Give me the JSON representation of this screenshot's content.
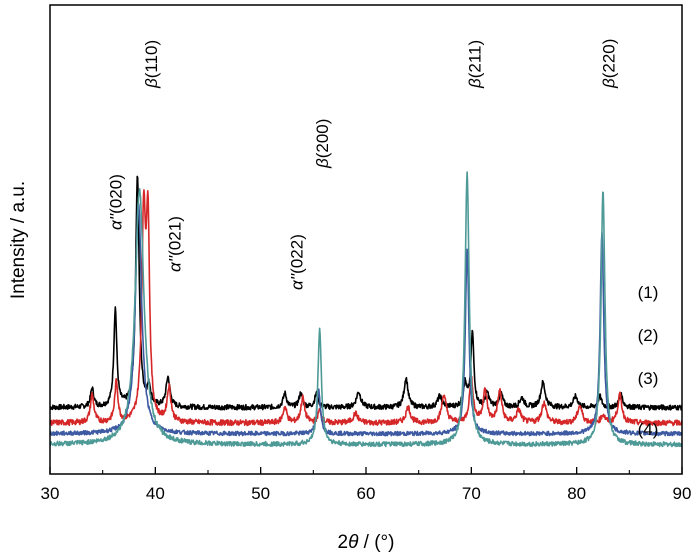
{
  "chart_data": {
    "type": "line",
    "xlabel_prefix": "2",
    "xlabel_symbol": "θ",
    "xlabel_suffix": " / (°)",
    "ylabel": "Intensity / a.u.",
    "xlim": [
      30,
      90
    ],
    "x_ticks": [
      "30",
      "40",
      "50",
      "60",
      "70",
      "80",
      "90"
    ],
    "y_ticks": [],
    "grid": false,
    "series": [
      {
        "name": "(1)",
        "color": "#000000",
        "baseline": 30,
        "noise": 0.55,
        "slope": 0,
        "peaks": [
          {
            "x": 34.0,
            "h": 12,
            "w": 0.18
          },
          {
            "x": 36.2,
            "h": 63,
            "w": 0.17
          },
          {
            "x": 38.3,
            "h": 150,
            "w": 0.2
          },
          {
            "x": 39.4,
            "h": 12,
            "w": 0.2
          },
          {
            "x": 41.2,
            "h": 19,
            "w": 0.22
          },
          {
            "x": 52.3,
            "h": 9,
            "w": 0.2
          },
          {
            "x": 53.8,
            "h": 9,
            "w": 0.2
          },
          {
            "x": 55.3,
            "h": 9,
            "w": 0.2
          },
          {
            "x": 59.3,
            "h": 10,
            "w": 0.25
          },
          {
            "x": 63.8,
            "h": 19,
            "w": 0.22
          },
          {
            "x": 67.0,
            "h": 7,
            "w": 0.25
          },
          {
            "x": 69.4,
            "h": 15,
            "w": 0.2
          },
          {
            "x": 70.1,
            "h": 48,
            "w": 0.17
          },
          {
            "x": 71.5,
            "h": 9,
            "w": 0.22
          },
          {
            "x": 72.8,
            "h": 9,
            "w": 0.22
          },
          {
            "x": 74.8,
            "h": 6,
            "w": 0.25
          },
          {
            "x": 76.8,
            "h": 16,
            "w": 0.25
          },
          {
            "x": 79.9,
            "h": 7,
            "w": 0.25
          },
          {
            "x": 82.2,
            "h": 7,
            "w": 0.2
          },
          {
            "x": 84.2,
            "h": 8,
            "w": 0.22
          }
        ]
      },
      {
        "name": "(2)",
        "color": "#d62728",
        "baseline": 20,
        "noise": 0.6,
        "slope": 0,
        "peaks": [
          {
            "x": 34.0,
            "h": 18,
            "w": 0.2
          },
          {
            "x": 36.3,
            "h": 26,
            "w": 0.18
          },
          {
            "x": 38.9,
            "h": 130,
            "w": 0.22
          },
          {
            "x": 39.3,
            "h": 120,
            "w": 0.18
          },
          {
            "x": 41.3,
            "h": 22,
            "w": 0.22
          },
          {
            "x": 52.3,
            "h": 10,
            "w": 0.22
          },
          {
            "x": 54.0,
            "h": 16,
            "w": 0.22
          },
          {
            "x": 55.6,
            "h": 8,
            "w": 0.2
          },
          {
            "x": 59.0,
            "h": 6,
            "w": 0.28
          },
          {
            "x": 64.0,
            "h": 10,
            "w": 0.26
          },
          {
            "x": 67.4,
            "h": 18,
            "w": 0.26
          },
          {
            "x": 70.0,
            "h": 28,
            "w": 0.22
          },
          {
            "x": 71.3,
            "h": 20,
            "w": 0.24
          },
          {
            "x": 72.7,
            "h": 20,
            "w": 0.24
          },
          {
            "x": 74.5,
            "h": 8,
            "w": 0.26
          },
          {
            "x": 76.9,
            "h": 13,
            "w": 0.26
          },
          {
            "x": 80.3,
            "h": 11,
            "w": 0.26
          },
          {
            "x": 82.5,
            "h": 5,
            "w": 0.22
          },
          {
            "x": 84.1,
            "h": 18,
            "w": 0.24
          }
        ]
      },
      {
        "name": "(3)",
        "color": "#3d5aa3",
        "baseline": 13,
        "noise": 0.45,
        "slope": 0,
        "peaks": [
          {
            "x": 38.4,
            "h": 150,
            "w": 0.35
          },
          {
            "x": 55.5,
            "h": 28,
            "w": 0.2
          },
          {
            "x": 69.6,
            "h": 120,
            "w": 0.2
          },
          {
            "x": 82.4,
            "h": 130,
            "w": 0.2
          }
        ]
      },
      {
        "name": "(4)",
        "color": "#4e9a97",
        "baseline": 6,
        "noise": 0.5,
        "slope": 0,
        "peaks": [
          {
            "x": 38.5,
            "h": 165,
            "w": 0.5
          },
          {
            "x": 55.6,
            "h": 74,
            "w": 0.2
          },
          {
            "x": 69.6,
            "h": 175,
            "w": 0.23
          },
          {
            "x": 82.5,
            "h": 165,
            "w": 0.22
          }
        ]
      }
    ],
    "annotations": [
      {
        "symbol": "α''",
        "text": "(020)",
        "x": 36.2
      },
      {
        "symbol": "β",
        "text": "(110)",
        "x": 39.6
      },
      {
        "symbol": "α''",
        "text": "(021)",
        "x": 41.8
      },
      {
        "symbol": "α''",
        "text": "(022)",
        "x": 53.4
      },
      {
        "symbol": "β",
        "text": "(200)",
        "x": 55.8
      },
      {
        "symbol": "β",
        "text": "(211)",
        "x": 70.3
      },
      {
        "symbol": "β",
        "text": "(220)",
        "x": 83.0
      }
    ]
  }
}
